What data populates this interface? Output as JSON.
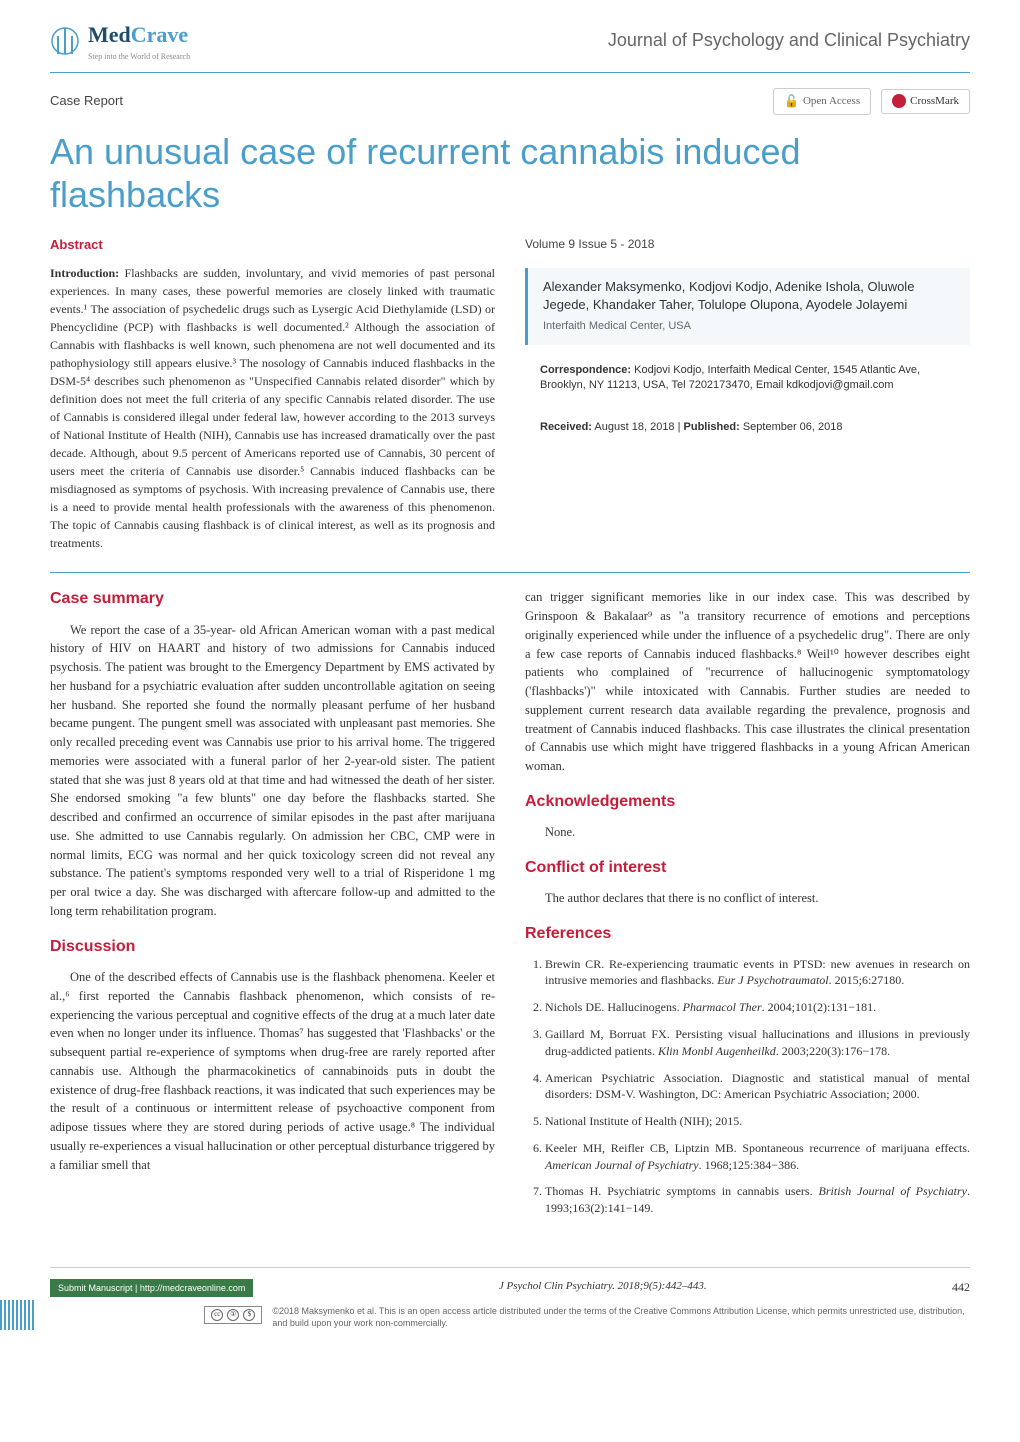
{
  "header": {
    "logo_main_med": "Med",
    "logo_main_crave": "Crave",
    "logo_sub": "Step into the World of Research",
    "journal_name": "Journal of Psychology and Clinical Psychiatry"
  },
  "meta": {
    "article_type": "Case Report",
    "open_access": "Open Access",
    "crossmark": "CrossMark"
  },
  "title": "An unusual case of recurrent cannabis induced flashbacks",
  "abstract": {
    "heading": "Abstract",
    "intro_label": "Introduction:",
    "text": " Flashbacks are sudden, involuntary, and vivid memories of past personal experiences. In many cases, these powerful memories are closely linked with traumatic events.¹ The association of psychedelic drugs such as Lysergic Acid Diethylamide (LSD) or Phencyclidine (PCP) with flashbacks is well documented.² Although the association of Cannabis with flashbacks is well known, such phenomena are not well documented and its pathophysiology still appears elusive.³ The nosology of Cannabis induced flashbacks in the DSM-5⁴ describes such phenomenon as \"Unspecified Cannabis related disorder\" which by definition does not meet the full criteria of any specific Cannabis related disorder. The use of Cannabis is considered illegal under federal law, however according to the 2013 surveys of National Institute of Health (NIH), Cannabis use has increased dramatically over the past decade. Although, about 9.5 percent of Americans reported use of Cannabis, 30 percent of users meet the criteria of Cannabis use disorder.⁵ Cannabis induced flashbacks can be misdiagnosed as symptoms of psychosis. With increasing prevalence of Cannabis use, there is a need to provide mental health professionals with the awareness of this phenomenon. The topic of Cannabis causing flashback is of clinical interest, as well as its prognosis and treatments."
  },
  "info": {
    "volume": "Volume 9 Issue 5 - 2018",
    "authors": "Alexander Maksymenko, Kodjovi Kodjo, Adenike Ishola, Oluwole Jegede, Khandaker Taher, Tolulope Olupona, Ayodele Jolayemi",
    "affiliation": "Interfaith Medical Center, USA",
    "correspondence_label": "Correspondence:",
    "correspondence": " Kodjovi Kodjo, Interfaith Medical Center, 1545 Atlantic Ave, Brooklyn, NY 11213, USA, Tel 7202173470, Email kdkodjovi@gmail.com",
    "received_label": "Received:",
    "received": " August 18, 2018 | ",
    "published_label": "Published:",
    "published": " September 06, 2018"
  },
  "sections": {
    "case_summary": {
      "heading": "Case summary",
      "text": "We report the case of a 35-year- old African American woman with a past medical history of HIV on HAART and history of two admissions for Cannabis induced psychosis. The patient was brought to the Emergency Department by EMS activated by her husband for a psychiatric evaluation after sudden uncontrollable agitation on seeing her husband. She reported she found the normally pleasant perfume of her husband became pungent. The pungent smell was associated with unpleasant past memories. She only recalled preceding event was Cannabis use prior to his arrival home. The triggered memories were associated with a funeral parlor of her 2-year-old sister. The patient stated that she was just 8 years old at that time and had witnessed the death of her sister. She endorsed smoking \"a few blunts\" one day before the flashbacks started. She described and confirmed an occurrence of similar episodes in the past after marijuana use. She admitted to use Cannabis regularly. On admission her CBC, CMP were in normal limits, ECG was normal and her quick toxicology screen did not reveal any substance. The patient's symptoms responded very well to a trial of Risperidone 1 mg per oral twice a day. She was discharged with aftercare follow-up and admitted to the long term rehabilitation program."
    },
    "discussion": {
      "heading": "Discussion",
      "text_left": "One of the described effects of Cannabis use is the flashback phenomena. Keeler et al.,⁶ first reported the Cannabis flashback phenomenon, which consists of re-experiencing the various perceptual and cognitive effects of the drug at a much later date even when no longer under its influence. Thomas⁷ has suggested that 'Flashbacks' or the subsequent partial re-experience of symptoms when drug-free are rarely reported after cannabis use. Although the pharmacokinetics of cannabinoids puts in doubt the existence of drug-free flashback reactions, it was indicated that such experiences may be the result of a continuous or intermittent release of psychoactive component from adipose tissues where they are stored during periods of active usage.⁸ The individual usually re-experiences a visual hallucination or other perceptual disturbance triggered by a familiar smell that",
      "text_right": "can trigger significant memories like in our index case. This was described by Grinspoon & Bakalaar⁹ as \"a transitory recurrence of emotions and perceptions originally experienced while under the influence of a psychedelic drug\". There are only a few case reports of Cannabis induced flashbacks.⁸ Weil¹⁰ however describes eight patients who complained of \"recurrence of hallucinogenic symptomatology ('flashbacks')\" while intoxicated with Cannabis. Further studies are needed to supplement current research data available regarding the prevalence, prognosis and treatment of Cannabis induced flashbacks. This case illustrates the clinical presentation of Cannabis use which might have triggered flashbacks in a young African American woman."
    },
    "acknowledgements": {
      "heading": "Acknowledgements",
      "text": "None."
    },
    "conflict": {
      "heading": "Conflict of interest",
      "text": "The author declares that there is no conflict of interest."
    },
    "references": {
      "heading": "References",
      "items": [
        "Brewin CR. Re-experiencing traumatic events in PTSD: new avenues in research on intrusive memories and flashbacks. <em>Eur J Psychotraumatol</em>. 2015;6:27180.",
        "Nichols DE. Hallucinogens. <em>Pharmacol Ther</em>. 2004;101(2):131−181.",
        "Gaillard M, Borruat FX. Persisting visual hallucinations and illusions in previously drug-addicted patients. <em>Klin Monbl Augenheilkd</em>. 2003;220(3):176−178.",
        "American Psychiatric Association. Diagnostic and statistical manual of mental disorders: DSM-V. Washington, DC: American Psychiatric Association; 2000.",
        "National Institute of Health (NIH); 2015.",
        "Keeler MH, Reifler CB, Liptzin MB. Spontaneous recurrence of marijuana effects. <em>American Journal of Psychiatry</em>. 1968;125:384−386.",
        "Thomas H. Psychiatric symptoms in cannabis users. <em>British Journal of Psychiatry</em>. 1993;163(2):141−149."
      ]
    }
  },
  "footer": {
    "submit": "Submit Manuscript",
    "submit_url": " | http://medcraveonline.com",
    "citation": "J Psychol Clin Psychiatry. 2018;9(5):442‒443.",
    "page_num": "442",
    "license": "©2018 Maksymenko et al. This is an open access article distributed under the terms of the Creative Commons Attribution License, which permits unrestricted use, distribution, and build upon your work non-commercially."
  },
  "colors": {
    "brand_blue": "#4a9eca",
    "brand_dark_blue": "#1e4d6b",
    "brand_red": "#c41e3a",
    "green": "#3a7a47"
  }
}
